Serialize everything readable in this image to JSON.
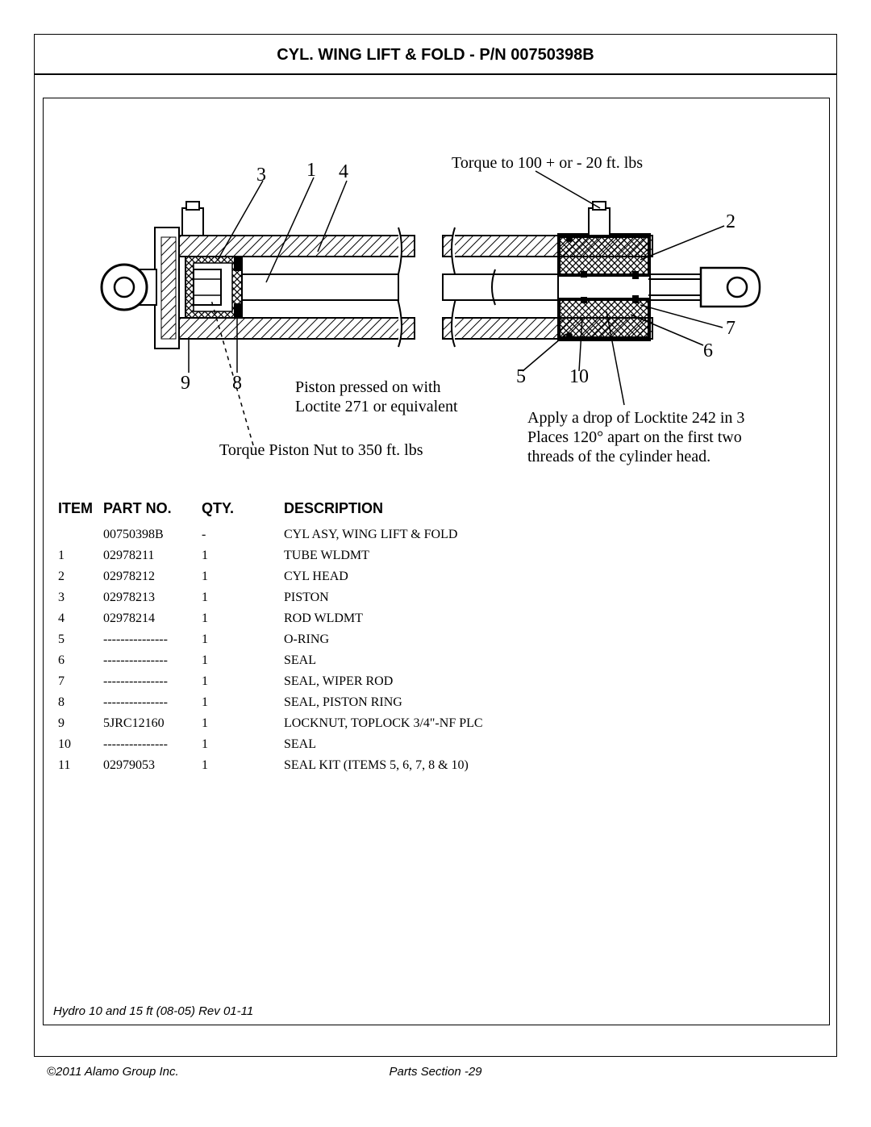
{
  "page": {
    "title": "CYL. WING LIFT & FOLD - P/N 00750398B",
    "rev_line": "Hydro 10 and 15 ft (08-05) Rev 01-11",
    "copyright": "©2011 Alamo Group Inc.",
    "footer": "Parts Section -29"
  },
  "diagram": {
    "callouts": {
      "c1": "1",
      "c2": "2",
      "c3": "3",
      "c4": "4",
      "c5": "5",
      "c6": "6",
      "c7": "7",
      "c8": "8",
      "c9": "9",
      "c10": "10"
    },
    "notes": {
      "torque_top": "Torque to 100 + or - 20 ft. lbs",
      "piston_note_l1": "Piston pressed on with",
      "piston_note_l2": "Loctite 271 or equivalent",
      "torque_nut": "Torque Piston Nut to 350 ft. lbs",
      "loctite_l1": "Apply a drop of Locktite 242 in 3",
      "loctite_l2": "Places 120° apart on the first two",
      "loctite_l3": "threads of the cylinder head."
    },
    "colors": {
      "stroke": "#000000",
      "fill_bg": "#ffffff"
    }
  },
  "table": {
    "headers": {
      "item": "ITEM",
      "part": "PART NO.",
      "qty": "QTY.",
      "desc": "DESCRIPTION"
    },
    "rows": [
      {
        "item": "",
        "part": "00750398B",
        "qty": "-",
        "desc": "CYL  ASY, WING LIFT & FOLD"
      },
      {
        "item": "1",
        "part": "02978211",
        "qty": "1",
        "desc": "TUBE WLDMT"
      },
      {
        "item": "2",
        "part": "02978212",
        "qty": "1",
        "desc": "CYL HEAD"
      },
      {
        "item": "3",
        "part": "02978213",
        "qty": "1",
        "desc": "PISTON"
      },
      {
        "item": "4",
        "part": "02978214",
        "qty": "1",
        "desc": "ROD WLDMT"
      },
      {
        "item": "5",
        "part": "---------------",
        "qty": "1",
        "desc": "O-RING"
      },
      {
        "item": "6",
        "part": "---------------",
        "qty": "1",
        "desc": "SEAL"
      },
      {
        "item": "7",
        "part": "---------------",
        "qty": "1",
        "desc": "SEAL, WIPER ROD"
      },
      {
        "item": "8",
        "part": "---------------",
        "qty": "1",
        "desc": "SEAL, PISTON RING"
      },
      {
        "item": "9",
        "part": "5JRC12160",
        "qty": "1",
        "desc": "LOCKNUT, TOPLOCK 3/4\"-NF PLC"
      },
      {
        "item": "10",
        "part": "---------------",
        "qty": "1",
        "desc": "SEAL"
      },
      {
        "item": "11",
        "part": "02979053",
        "qty": "1",
        "desc": "SEAL KIT (ITEMS 5, 6, 7, 8 & 10)"
      }
    ]
  }
}
